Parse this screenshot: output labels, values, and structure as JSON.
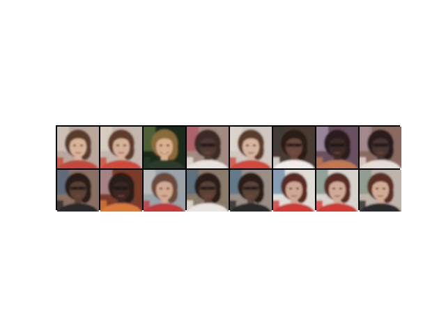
{
  "figure": {
    "rows": 2,
    "cols": 8,
    "tiles": [
      {
        "bg": "#b9a79c",
        "hair": "#5a3a2a",
        "skin": "#d9b49c",
        "shirt": "#c44a3a",
        "accent": "#e0d4c8",
        "expression": "neutral"
      },
      {
        "bg": "#c4b6ac",
        "hair": "#5e3b2b",
        "skin": "#d6b19a",
        "shirt": "#cf4a3a",
        "accent": "#e8dcd0",
        "expression": "neutral"
      },
      {
        "bg": "#1d2a1c",
        "hair": "#8a6a3a",
        "skin": "#d8b08c",
        "shirt": "#2a3a2a",
        "accent": "#7a8a4a",
        "expression": "smile"
      },
      {
        "bg": "#a28a80",
        "hair": "#3a2a28",
        "skin": "#4e3a33",
        "shirt": "#e8e2dc",
        "accent": "#b4465a",
        "expression": "dark"
      },
      {
        "bg": "#cfc7c0",
        "hair": "#5a3a2a",
        "skin": "#d6b4a0",
        "shirt": "#d04a3a",
        "accent": "#e6dad2",
        "expression": "neutral"
      },
      {
        "bg": "#4a3a30",
        "hair": "#2a1e18",
        "skin": "#6a4a3c",
        "shirt": "#f0ece8",
        "accent": "#3a3a3a",
        "expression": "dark"
      },
      {
        "bg": "#6a5060",
        "hair": "#2a1e1e",
        "skin": "#3e2c28",
        "shirt": "#c07850",
        "accent": "#c0b0c8",
        "expression": "dark"
      },
      {
        "bg": "#8a6a60",
        "hair": "#2a1e1e",
        "skin": "#4a3630",
        "shirt": "#e4dcd6",
        "accent": "#b8a0b0",
        "expression": "dark"
      },
      {
        "bg": "#8a7062",
        "hair": "#2a1e18",
        "skin": "#5a4236",
        "shirt": "#2a2a2a",
        "accent": "#3a6a8a",
        "expression": "dark"
      },
      {
        "bg": "#7a3a2a",
        "hair": "#2a1e18",
        "skin": "#3a2824",
        "shirt": "#d87a3a",
        "accent": "#c8c0d0",
        "expression": "dark"
      },
      {
        "bg": "#9aa2aa",
        "hair": "#6a4a3a",
        "skin": "#d0aa92",
        "shirt": "#c03a3a",
        "accent": "#d8d0c8",
        "expression": "neutral"
      },
      {
        "bg": "#8a7a6a",
        "hair": "#2a1e18",
        "skin": "#5a4236",
        "shirt": "#e8e4e0",
        "accent": "#3a6a8a",
        "expression": "dark"
      },
      {
        "bg": "#9a8e86",
        "hair": "#2a1e18",
        "skin": "#5c4438",
        "shirt": "#2c2c2c",
        "accent": "#3a6a8a",
        "expression": "dark"
      },
      {
        "bg": "#e0dcd6",
        "hair": "#5a2a22",
        "skin": "#cfa894",
        "shirt": "#d03a34",
        "accent": "#3a6a9a",
        "expression": "neutral"
      },
      {
        "bg": "#d8d2cc",
        "hair": "#5a2a22",
        "skin": "#d0aa96",
        "shirt": "#d03a34",
        "accent": "#5a7a6a",
        "expression": "neutral"
      },
      {
        "bg": "#bfb4ac",
        "hair": "#5a2e24",
        "skin": "#d2ac96",
        "shirt": "#2a2a2a",
        "accent": "#6a8a7a",
        "expression": "neutral"
      }
    ]
  }
}
